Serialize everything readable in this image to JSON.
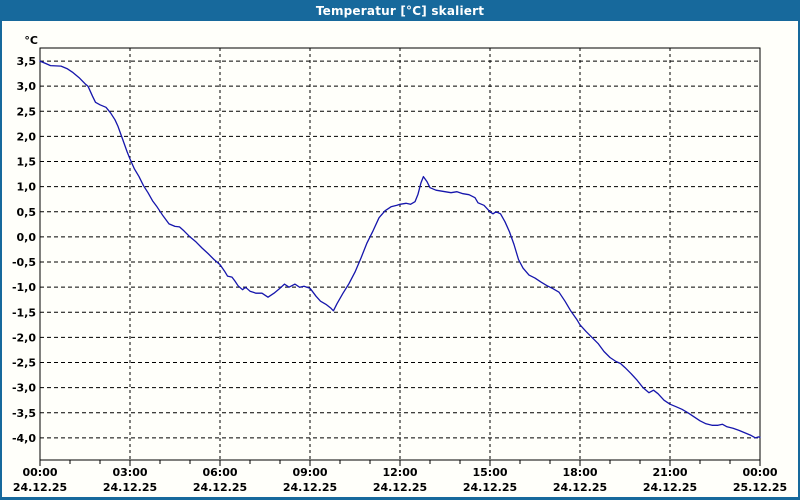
{
  "window": {
    "title": "Temperatur [°C] skaliert"
  },
  "colors": {
    "titlebar": "#17699c",
    "border": "#17699c",
    "plot_background": "#fffffa",
    "grid": "#000000",
    "axis": "#000000",
    "tick_text": "#000000",
    "line": "#1616ac",
    "title_text": "#ffffff"
  },
  "chart_data": {
    "type": "line",
    "title": "Temperatur [°C] skaliert",
    "ylabel": "°C",
    "xlabel": "",
    "grid": "dashed, both axes",
    "legend": "none",
    "ymax": 3.76,
    "ymin": -4.44,
    "xmin_hours": 0,
    "xmax_hours": 24,
    "minor_tick_hours": 1,
    "y_ticks": [
      {
        "v": 3.5,
        "label": "3,5"
      },
      {
        "v": 3.0,
        "label": "3,0"
      },
      {
        "v": 2.5,
        "label": "2,5"
      },
      {
        "v": 2.0,
        "label": "2,0"
      },
      {
        "v": 1.5,
        "label": "1,5"
      },
      {
        "v": 1.0,
        "label": "1,0"
      },
      {
        "v": 0.5,
        "label": "0,5"
      },
      {
        "v": 0.0,
        "label": "0,0"
      },
      {
        "v": -0.5,
        "label": "-0,5"
      },
      {
        "v": -1.0,
        "label": "-1,0"
      },
      {
        "v": -1.5,
        "label": "-1,5"
      },
      {
        "v": -2.0,
        "label": "-2,0"
      },
      {
        "v": -2.5,
        "label": "-2,5"
      },
      {
        "v": -3.0,
        "label": "-3,0"
      },
      {
        "v": -3.5,
        "label": "-3,5"
      },
      {
        "v": -4.0,
        "label": "-4,0"
      }
    ],
    "x_ticks": [
      {
        "h": 0,
        "time": "00:00",
        "date": "24.12.25"
      },
      {
        "h": 3,
        "time": "03:00",
        "date": "24.12.25"
      },
      {
        "h": 6,
        "time": "06:00",
        "date": "24.12.25"
      },
      {
        "h": 9,
        "time": "09:00",
        "date": "24.12.25"
      },
      {
        "h": 12,
        "time": "12:00",
        "date": "24.12.25"
      },
      {
        "h": 15,
        "time": "15:00",
        "date": "24.12.25"
      },
      {
        "h": 18,
        "time": "18:00",
        "date": "24.12.25"
      },
      {
        "h": 21,
        "time": "21:00",
        "date": "24.12.25"
      },
      {
        "h": 24,
        "time": "00:00",
        "date": "25.12.25"
      }
    ],
    "series": [
      {
        "name": "Temperatur",
        "color": "#1616ac",
        "points": [
          [
            0.0,
            3.5
          ],
          [
            0.2,
            3.45
          ],
          [
            0.35,
            3.41
          ],
          [
            0.7,
            3.4
          ],
          [
            0.9,
            3.35
          ],
          [
            1.1,
            3.27
          ],
          [
            1.3,
            3.17
          ],
          [
            1.5,
            3.05
          ],
          [
            1.6,
            3.0
          ],
          [
            1.75,
            2.8
          ],
          [
            1.85,
            2.68
          ],
          [
            2.0,
            2.63
          ],
          [
            2.2,
            2.58
          ],
          [
            2.35,
            2.47
          ],
          [
            2.5,
            2.33
          ],
          [
            2.6,
            2.2
          ],
          [
            2.75,
            1.95
          ],
          [
            2.9,
            1.7
          ],
          [
            3.0,
            1.55
          ],
          [
            3.15,
            1.35
          ],
          [
            3.3,
            1.2
          ],
          [
            3.45,
            1.02
          ],
          [
            3.6,
            0.88
          ],
          [
            3.75,
            0.72
          ],
          [
            3.9,
            0.6
          ],
          [
            4.1,
            0.42
          ],
          [
            4.3,
            0.26
          ],
          [
            4.5,
            0.21
          ],
          [
            4.65,
            0.2
          ],
          [
            4.8,
            0.12
          ],
          [
            5.0,
            0.0
          ],
          [
            5.2,
            -0.1
          ],
          [
            5.4,
            -0.22
          ],
          [
            5.6,
            -0.33
          ],
          [
            5.8,
            -0.45
          ],
          [
            6.0,
            -0.55
          ],
          [
            6.15,
            -0.68
          ],
          [
            6.25,
            -0.78
          ],
          [
            6.4,
            -0.8
          ],
          [
            6.5,
            -0.88
          ],
          [
            6.6,
            -0.97
          ],
          [
            6.75,
            -1.05
          ],
          [
            6.85,
            -1.0
          ],
          [
            7.0,
            -1.08
          ],
          [
            7.2,
            -1.12
          ],
          [
            7.4,
            -1.12
          ],
          [
            7.6,
            -1.2
          ],
          [
            7.8,
            -1.12
          ],
          [
            8.0,
            -1.02
          ],
          [
            8.15,
            -0.94
          ],
          [
            8.3,
            -1.0
          ],
          [
            8.5,
            -0.94
          ],
          [
            8.65,
            -1.0
          ],
          [
            8.8,
            -0.98
          ],
          [
            9.0,
            -1.02
          ],
          [
            9.2,
            -1.18
          ],
          [
            9.35,
            -1.28
          ],
          [
            9.55,
            -1.35
          ],
          [
            9.7,
            -1.42
          ],
          [
            9.78,
            -1.47
          ],
          [
            9.9,
            -1.33
          ],
          [
            10.1,
            -1.12
          ],
          [
            10.3,
            -0.93
          ],
          [
            10.5,
            -0.7
          ],
          [
            10.7,
            -0.42
          ],
          [
            10.9,
            -0.12
          ],
          [
            11.1,
            0.12
          ],
          [
            11.3,
            0.38
          ],
          [
            11.5,
            0.52
          ],
          [
            11.7,
            0.6
          ],
          [
            11.9,
            0.63
          ],
          [
            12.0,
            0.65
          ],
          [
            12.2,
            0.67
          ],
          [
            12.35,
            0.65
          ],
          [
            12.5,
            0.7
          ],
          [
            12.6,
            0.85
          ],
          [
            12.7,
            1.08
          ],
          [
            12.78,
            1.2
          ],
          [
            12.9,
            1.1
          ],
          [
            13.0,
            0.98
          ],
          [
            13.2,
            0.93
          ],
          [
            13.5,
            0.9
          ],
          [
            13.7,
            0.88
          ],
          [
            13.9,
            0.9
          ],
          [
            14.1,
            0.86
          ],
          [
            14.3,
            0.84
          ],
          [
            14.5,
            0.78
          ],
          [
            14.6,
            0.68
          ],
          [
            14.8,
            0.63
          ],
          [
            15.0,
            0.5
          ],
          [
            15.1,
            0.46
          ],
          [
            15.2,
            0.5
          ],
          [
            15.35,
            0.46
          ],
          [
            15.5,
            0.3
          ],
          [
            15.65,
            0.1
          ],
          [
            15.8,
            -0.15
          ],
          [
            15.95,
            -0.45
          ],
          [
            16.1,
            -0.62
          ],
          [
            16.3,
            -0.76
          ],
          [
            16.5,
            -0.82
          ],
          [
            16.7,
            -0.9
          ],
          [
            16.9,
            -0.97
          ],
          [
            17.1,
            -1.03
          ],
          [
            17.3,
            -1.1
          ],
          [
            17.5,
            -1.28
          ],
          [
            17.7,
            -1.48
          ],
          [
            17.9,
            -1.65
          ],
          [
            18.0,
            -1.75
          ],
          [
            18.2,
            -1.88
          ],
          [
            18.4,
            -2.0
          ],
          [
            18.6,
            -2.12
          ],
          [
            18.8,
            -2.28
          ],
          [
            19.0,
            -2.4
          ],
          [
            19.2,
            -2.48
          ],
          [
            19.35,
            -2.52
          ],
          [
            19.5,
            -2.6
          ],
          [
            19.7,
            -2.72
          ],
          [
            19.9,
            -2.85
          ],
          [
            20.1,
            -3.0
          ],
          [
            20.3,
            -3.1
          ],
          [
            20.45,
            -3.05
          ],
          [
            20.6,
            -3.12
          ],
          [
            20.8,
            -3.25
          ],
          [
            21.0,
            -3.33
          ],
          [
            21.2,
            -3.38
          ],
          [
            21.4,
            -3.43
          ],
          [
            21.6,
            -3.5
          ],
          [
            21.8,
            -3.58
          ],
          [
            22.0,
            -3.66
          ],
          [
            22.2,
            -3.72
          ],
          [
            22.4,
            -3.75
          ],
          [
            22.6,
            -3.75
          ],
          [
            22.75,
            -3.73
          ],
          [
            22.9,
            -3.78
          ],
          [
            23.1,
            -3.81
          ],
          [
            23.3,
            -3.85
          ],
          [
            23.5,
            -3.9
          ],
          [
            23.7,
            -3.95
          ],
          [
            23.85,
            -4.0
          ],
          [
            23.95,
            -3.98
          ],
          [
            24.0,
            -3.99
          ]
        ]
      }
    ]
  }
}
